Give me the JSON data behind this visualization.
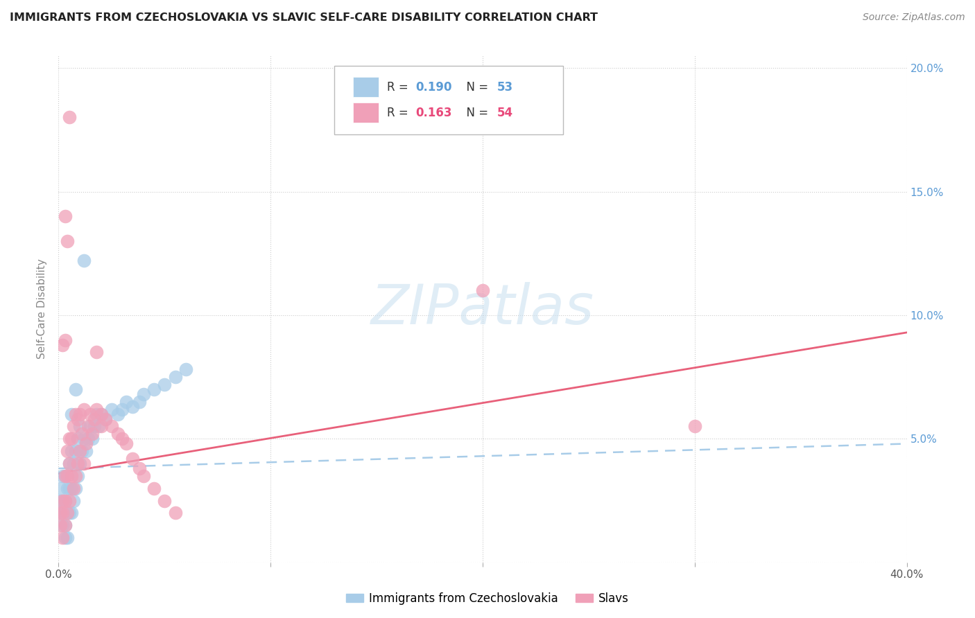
{
  "title": "IMMIGRANTS FROM CZECHOSLOVAKIA VS SLAVIC SELF-CARE DISABILITY CORRELATION CHART",
  "source": "Source: ZipAtlas.com",
  "ylabel": "Self-Care Disability",
  "legend_label1": "Immigrants from Czechoslovakia",
  "legend_label2": "Slavs",
  "color_blue": "#A8CCE8",
  "color_pink": "#F0A0B8",
  "color_blue_line": "#A8CCE8",
  "color_pink_line": "#E8607A",
  "color_rn_blue": "#5B9BD5",
  "color_rn_pink": "#E8497A",
  "xlim": [
    0.0,
    0.4
  ],
  "ylim": [
    0.0,
    0.205
  ],
  "blue_line_start": 0.038,
  "blue_line_end": 0.048,
  "pink_line_start": 0.036,
  "pink_line_end": 0.093,
  "blue_x": [
    0.001,
    0.001,
    0.001,
    0.002,
    0.002,
    0.002,
    0.002,
    0.003,
    0.003,
    0.003,
    0.003,
    0.004,
    0.004,
    0.004,
    0.005,
    0.005,
    0.005,
    0.006,
    0.006,
    0.006,
    0.007,
    0.007,
    0.008,
    0.008,
    0.009,
    0.009,
    0.01,
    0.01,
    0.011,
    0.012,
    0.013,
    0.014,
    0.015,
    0.016,
    0.017,
    0.018,
    0.019,
    0.02,
    0.022,
    0.025,
    0.028,
    0.03,
    0.032,
    0.035,
    0.038,
    0.04,
    0.045,
    0.05,
    0.055,
    0.06,
    0.012,
    0.006,
    0.008
  ],
  "blue_y": [
    0.02,
    0.025,
    0.03,
    0.015,
    0.02,
    0.025,
    0.035,
    0.01,
    0.015,
    0.025,
    0.035,
    0.01,
    0.02,
    0.03,
    0.02,
    0.03,
    0.04,
    0.02,
    0.03,
    0.045,
    0.025,
    0.04,
    0.03,
    0.045,
    0.035,
    0.05,
    0.04,
    0.055,
    0.045,
    0.05,
    0.045,
    0.05,
    0.055,
    0.05,
    0.055,
    0.06,
    0.055,
    0.06,
    0.058,
    0.062,
    0.06,
    0.062,
    0.065,
    0.063,
    0.065,
    0.068,
    0.07,
    0.072,
    0.075,
    0.078,
    0.122,
    0.06,
    0.07
  ],
  "pink_x": [
    0.001,
    0.001,
    0.002,
    0.002,
    0.002,
    0.003,
    0.003,
    0.003,
    0.004,
    0.004,
    0.004,
    0.005,
    0.005,
    0.005,
    0.006,
    0.006,
    0.007,
    0.007,
    0.008,
    0.008,
    0.009,
    0.009,
    0.01,
    0.01,
    0.011,
    0.012,
    0.012,
    0.013,
    0.014,
    0.015,
    0.016,
    0.017,
    0.018,
    0.02,
    0.022,
    0.025,
    0.028,
    0.03,
    0.032,
    0.035,
    0.038,
    0.04,
    0.045,
    0.05,
    0.055,
    0.2,
    0.3,
    0.003,
    0.004,
    0.005,
    0.003,
    0.002,
    0.018,
    0.02
  ],
  "pink_y": [
    0.015,
    0.02,
    0.01,
    0.02,
    0.025,
    0.015,
    0.025,
    0.035,
    0.02,
    0.035,
    0.045,
    0.025,
    0.04,
    0.05,
    0.035,
    0.05,
    0.03,
    0.055,
    0.035,
    0.06,
    0.04,
    0.058,
    0.045,
    0.06,
    0.052,
    0.04,
    0.062,
    0.048,
    0.055,
    0.06,
    0.052,
    0.058,
    0.062,
    0.06,
    0.058,
    0.055,
    0.052,
    0.05,
    0.048,
    0.042,
    0.038,
    0.035,
    0.03,
    0.025,
    0.02,
    0.11,
    0.055,
    0.14,
    0.13,
    0.18,
    0.09,
    0.088,
    0.085,
    0.055
  ]
}
